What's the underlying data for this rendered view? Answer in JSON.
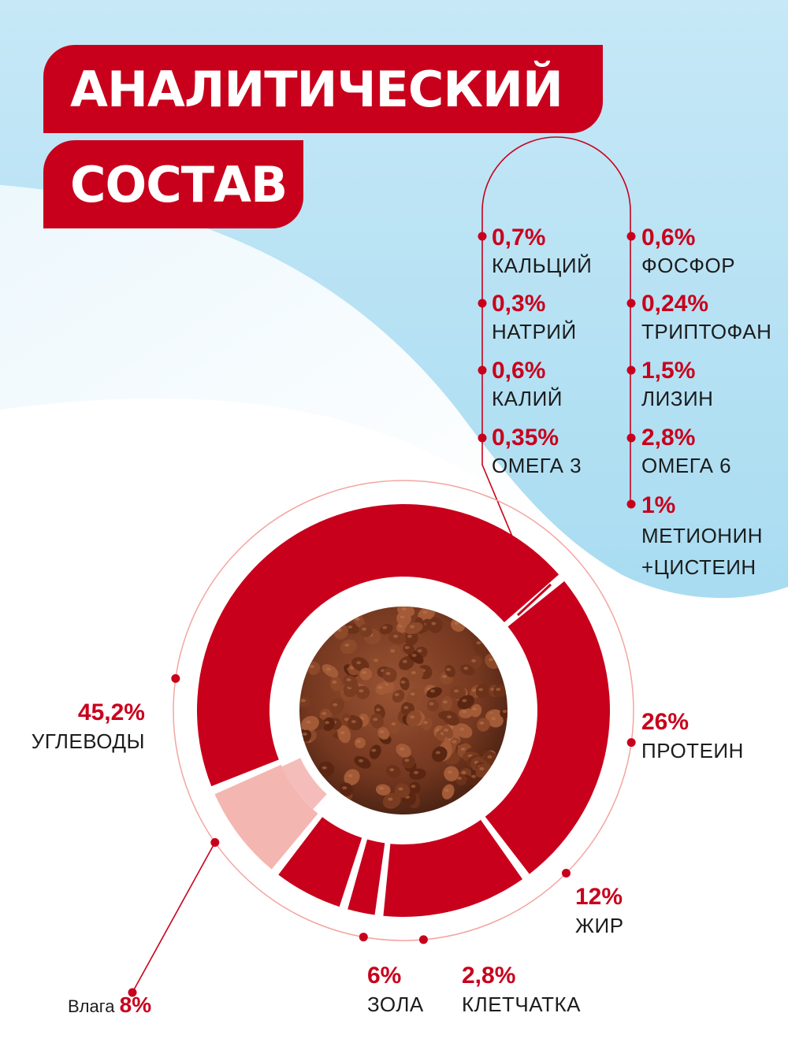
{
  "title": {
    "line1": "АНАЛИТИЧЕСКИЙ",
    "line2": "СОСТАВ"
  },
  "colors": {
    "primary": "#c8001c",
    "light": "#f4b6b1",
    "sky": "#bfe6f7"
  },
  "nutrients": [
    {
      "value": "0,7%",
      "name": "КАЛЬЦИЙ"
    },
    {
      "value": "0,6%",
      "name": "ФОСФОР"
    },
    {
      "value": "0,3%",
      "name": "НАТРИЙ"
    },
    {
      "value": "0,24%",
      "name": "ТРИПТОФАН"
    },
    {
      "value": "0,6%",
      "name": "КАЛИЙ"
    },
    {
      "value": "1,5%",
      "name": "ЛИЗИН"
    },
    {
      "value": "0,35%",
      "name": "ОМЕГА 3"
    },
    {
      "value": "2,8%",
      "name": "ОМЕГА 6"
    },
    {
      "value": "1%",
      "name": "МЕТИОНИН +ЦИСТЕИН"
    }
  ],
  "chart_data": {
    "type": "pie",
    "series": [
      {
        "name": "ПРОТЕИН",
        "value": 26,
        "label": "26%"
      },
      {
        "name": "ЖИР",
        "value": 12,
        "label": "12%"
      },
      {
        "name": "КЛЕТЧАТКА",
        "value": 2.8,
        "label": "2,8%"
      },
      {
        "name": "ЗОЛА",
        "value": 6,
        "label": "6%"
      },
      {
        "name": "Влага",
        "value": 8,
        "label": "8%"
      },
      {
        "name": "УГЛЕВОДЫ",
        "value": 45.2,
        "label": "45,2%"
      }
    ]
  },
  "center_image": "dry-food-kibble"
}
